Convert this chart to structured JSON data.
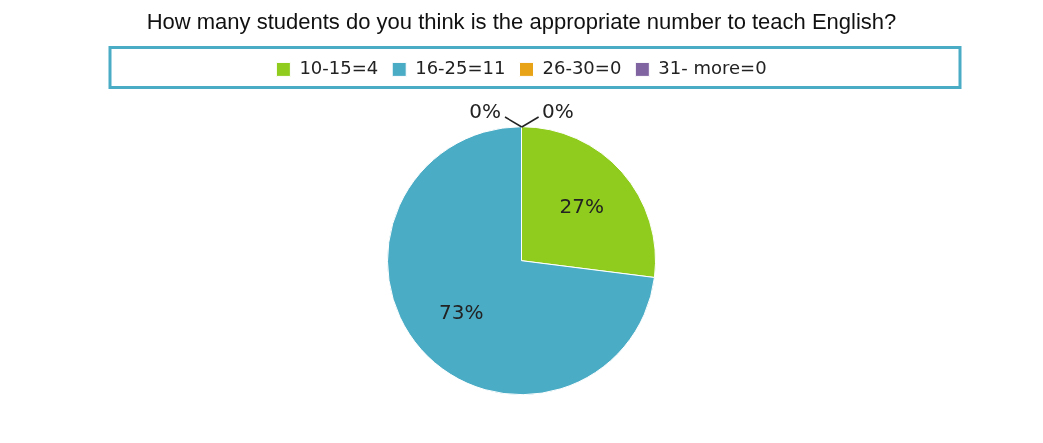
{
  "chart_data": {
    "type": "pie",
    "title": "How many students do you think is the appropriate number to teach English?",
    "categories": [
      "10-15=4",
      "16-25=11",
      "26-30=0",
      "31- more=0"
    ],
    "values": [
      27,
      73,
      0,
      0
    ],
    "colors": [
      "#8fcc1e",
      "#4bacc6",
      "#e8a317",
      "#8064a2"
    ],
    "value_labels": [
      "27%",
      "73%",
      "0%",
      "0%"
    ],
    "legend": "top"
  }
}
